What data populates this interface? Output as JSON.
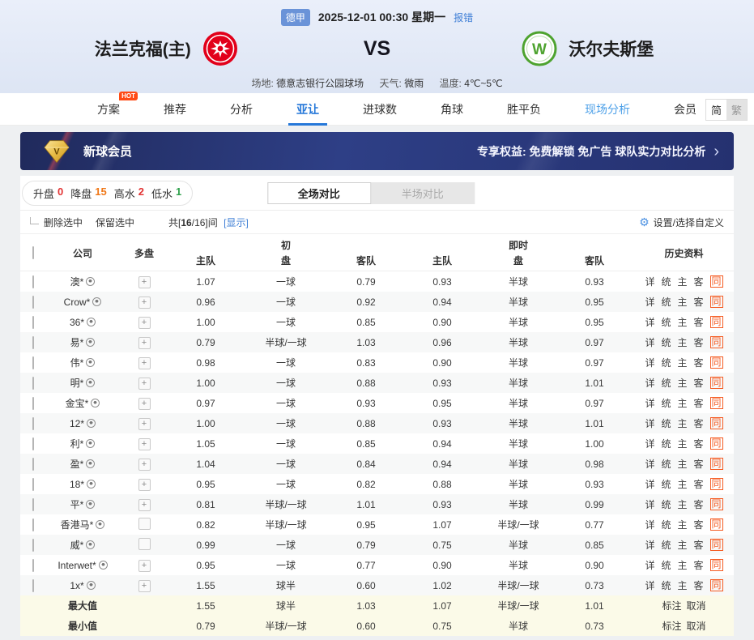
{
  "header": {
    "league_badge": "德甲",
    "datetime": "2025-12-01 00:30 星期一",
    "report_error": "报错",
    "home_team": "法兰克福(主)",
    "vs": "VS",
    "away_team": "沃尔夫斯堡",
    "venue_label": "场地:",
    "venue": "德意志银行公园球场",
    "weather_label": "天气:",
    "weather": "微雨",
    "temp_label": "温度:",
    "temperature": "4℃~5℃"
  },
  "nav": {
    "hot_badge": "HOT",
    "tabs": [
      {
        "label": "方案",
        "hot": true
      },
      {
        "label": "推荐"
      },
      {
        "label": "分析"
      },
      {
        "label": "亚让",
        "active": true
      },
      {
        "label": "进球数"
      },
      {
        "label": "角球"
      },
      {
        "label": "胜平负"
      },
      {
        "label": "现场分析",
        "highlight": true
      },
      {
        "label": "会员"
      }
    ],
    "lang_simplified": "简",
    "lang_traditional": "繁"
  },
  "banner": {
    "title": "新球会员",
    "benefits": "专享权益: 免费解锁 免广告 球队实力对比分析",
    "chevron_icon": "›"
  },
  "filters": {
    "items": [
      {
        "label": "升盘",
        "value": "0",
        "color": "#e23333"
      },
      {
        "label": "降盘",
        "value": "15",
        "color": "#f07818"
      },
      {
        "label": "高水",
        "value": "2",
        "color": "#e23333"
      },
      {
        "label": "低水",
        "value": "1",
        "color": "#2fa14c"
      }
    ]
  },
  "toggle": {
    "full": "全场对比",
    "half": "半场对比"
  },
  "toolbar": {
    "delete_selected": "删除选中",
    "keep_selected": "保留选中",
    "count_prefix": "共[",
    "count_strong": "16",
    "count_suffix": "/16]间",
    "show_link": "[显示]",
    "gear_icon": "⚙",
    "settings": "设置/选择自定义"
  },
  "table": {
    "headers": {
      "company": "公司",
      "multi": "多盘",
      "init": "初",
      "live": "即时",
      "home": "主队",
      "line": "盘",
      "away": "客队",
      "history": "历史资料"
    },
    "plus_icon": "+",
    "history_links": [
      "详",
      "统",
      "主",
      "客"
    ],
    "same_link": "同",
    "rows": [
      {
        "name": "澳*",
        "ball": false,
        "multi": true,
        "i_home": "1.07",
        "i_line": "一球",
        "i_away": "0.79",
        "l_home": "0.93",
        "l_line": "半球",
        "l_away": "0.93"
      },
      {
        "name": "Crow*",
        "ball": true,
        "multi": true,
        "i_home": "0.96",
        "i_line": "一球",
        "i_away": "0.92",
        "l_home": "0.94",
        "l_line": "半球",
        "l_away": "0.95"
      },
      {
        "name": "36*",
        "ball": false,
        "multi": true,
        "i_home": "1.00",
        "i_line": "一球",
        "i_away": "0.85",
        "l_home": "0.90",
        "l_line": "半球",
        "l_away": "0.95"
      },
      {
        "name": "易*",
        "ball": false,
        "multi": true,
        "i_home": "0.79",
        "i_line": "半球/一球",
        "i_away": "1.03",
        "l_home": "0.96",
        "l_line": "半球",
        "l_away": "0.97"
      },
      {
        "name": "伟*",
        "ball": false,
        "multi": true,
        "i_home": "0.98",
        "i_line": "一球",
        "i_away": "0.83",
        "l_home": "0.90",
        "l_line": "半球",
        "l_away": "0.97"
      },
      {
        "name": "明*",
        "ball": false,
        "multi": true,
        "i_home": "1.00",
        "i_line": "一球",
        "i_away": "0.88",
        "l_home": "0.93",
        "l_line": "半球",
        "l_away": "1.01"
      },
      {
        "name": "金宝*",
        "ball": false,
        "multi": true,
        "i_home": "0.97",
        "i_line": "一球",
        "i_away": "0.93",
        "l_home": "0.95",
        "l_line": "半球",
        "l_away": "0.97"
      },
      {
        "name": "12*",
        "ball": false,
        "multi": true,
        "i_home": "1.00",
        "i_line": "一球",
        "i_away": "0.88",
        "l_home": "0.93",
        "l_line": "半球",
        "l_away": "1.01"
      },
      {
        "name": "利*",
        "ball": true,
        "multi": true,
        "i_home": "1.05",
        "i_line": "一球",
        "i_away": "0.85",
        "l_home": "0.94",
        "l_line": "半球",
        "l_away": "1.00"
      },
      {
        "name": "盈*",
        "ball": false,
        "multi": true,
        "i_home": "1.04",
        "i_line": "一球",
        "i_away": "0.84",
        "l_home": "0.94",
        "l_line": "半球",
        "l_away": "0.98"
      },
      {
        "name": "18*",
        "ball": false,
        "multi": true,
        "i_home": "0.95",
        "i_line": "一球",
        "i_away": "0.82",
        "l_home": "0.88",
        "l_line": "半球",
        "l_away": "0.93"
      },
      {
        "name": "平*",
        "ball": false,
        "multi": true,
        "i_home": "0.81",
        "i_line": "半球/一球",
        "i_away": "1.01",
        "l_home": "0.93",
        "l_line": "半球",
        "l_away": "0.99"
      },
      {
        "name": "香港马*",
        "ball": false,
        "multi": false,
        "i_home": "0.82",
        "i_line": "半球/一球",
        "i_away": "0.95",
        "l_home": "1.07",
        "l_line": "半球/一球",
        "l_away": "0.77"
      },
      {
        "name": "威*",
        "ball": false,
        "multi": false,
        "i_home": "0.99",
        "i_line": "一球",
        "i_away": "0.79",
        "l_home": "0.75",
        "l_line": "半球",
        "l_away": "0.85"
      },
      {
        "name": "Interwet*",
        "ball": false,
        "multi": true,
        "i_home": "0.95",
        "i_line": "一球",
        "i_away": "0.77",
        "l_home": "0.90",
        "l_line": "半球",
        "l_away": "0.90"
      },
      {
        "name": "1x*",
        "ball": false,
        "multi": true,
        "i_home": "1.55",
        "i_line": "球半",
        "i_away": "0.60",
        "l_home": "1.02",
        "l_line": "半球/一球",
        "l_away": "0.73"
      }
    ],
    "summary": [
      {
        "label": "最大值",
        "i_home": "1.55",
        "i_line": "球半",
        "i_away": "1.03",
        "l_home": "1.07",
        "l_line": "半球/一球",
        "l_away": "1.01"
      },
      {
        "label": "最小值",
        "i_home": "0.79",
        "i_line": "半球/一球",
        "i_away": "0.60",
        "l_home": "0.75",
        "l_line": "半球",
        "l_away": "0.73"
      }
    ],
    "summary_actions": [
      "标注",
      "取消"
    ]
  }
}
